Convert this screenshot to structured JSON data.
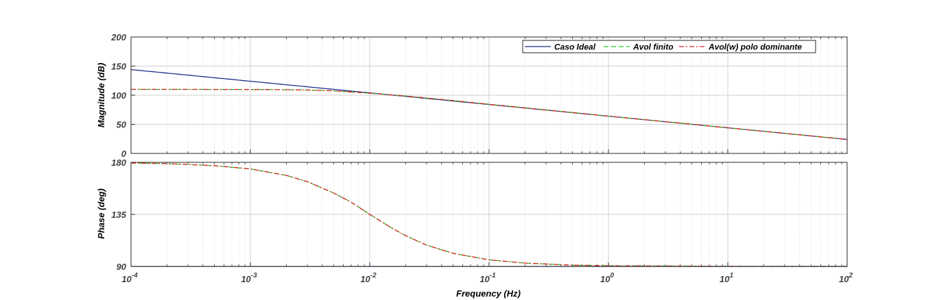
{
  "chart_data": [
    {
      "type": "line",
      "panel": "magnitude",
      "ylabel": "Magnitude (dB)",
      "ylim": [
        0,
        200
      ],
      "yticks": [
        "0",
        "50",
        "100",
        "150",
        "200"
      ],
      "xscale": "log",
      "xlim": [
        0.0001,
        100
      ],
      "grid": true,
      "legend_position": "top-right",
      "legend_entries": [
        "Caso Ideal",
        "Avol finito",
        "Avol(w) polo dominante"
      ],
      "series": [
        {
          "name": "Caso Ideal",
          "color": "#1f2f8a",
          "style": "solid",
          "x": [
            0.0001,
            0.001,
            0.01,
            0.1,
            1,
            10,
            100
          ],
          "y": [
            144,
            124,
            104,
            84,
            64,
            44,
            24
          ]
        },
        {
          "name": "Avol finito",
          "color": "#22cc22",
          "style": "dashed",
          "x": [
            0.0001,
            0.0003,
            0.001,
            0.002,
            0.003,
            0.005,
            0.01,
            0.02,
            0.05,
            0.1,
            1,
            10,
            100
          ],
          "y": [
            110,
            110,
            109.8,
            109.4,
            108.9,
            107.5,
            103.5,
            98.6,
            90.8,
            84.4,
            64.1,
            44.0,
            24.0
          ]
        },
        {
          "name": "Avol(w) polo dominante",
          "color": "#dd2222",
          "style": "dashdot",
          "x": [
            0.0001,
            0.0003,
            0.001,
            0.002,
            0.003,
            0.005,
            0.01,
            0.02,
            0.05,
            0.1,
            1,
            10,
            100
          ],
          "y": [
            110,
            110,
            109.8,
            109.4,
            108.9,
            107.5,
            103.5,
            98.6,
            90.8,
            84.4,
            64.1,
            44.0,
            24.0
          ]
        }
      ]
    },
    {
      "type": "line",
      "panel": "phase",
      "ylabel": "Phase (deg)",
      "xlabel": "Frequency  (Hz)",
      "ylim": [
        90,
        180
      ],
      "yticks": [
        "90",
        "135",
        "180"
      ],
      "xscale": "log",
      "xlim": [
        0.0001,
        100
      ],
      "xticks": [
        "10^-4",
        "10^-3",
        "10^-2",
        "10^-1",
        "10^0",
        "10^1",
        "10^2"
      ],
      "grid": true,
      "series": [
        {
          "name": "Caso Ideal",
          "color": "#1f2f8a",
          "style": "solid",
          "x": [
            0.0001,
            100
          ],
          "y": [
            90,
            90
          ]
        },
        {
          "name": "Avol finito",
          "color": "#22cc22",
          "style": "dashed",
          "x": [
            0.0001,
            0.0002,
            0.0005,
            0.001,
            0.002,
            0.003,
            0.005,
            0.007,
            0.01,
            0.015,
            0.02,
            0.03,
            0.05,
            0.1,
            0.2,
            0.5,
            1,
            10,
            100
          ],
          "y": [
            179.4,
            178.9,
            177.1,
            174.3,
            168.7,
            163.3,
            153.4,
            145.5,
            135.0,
            123.7,
            116.6,
            108.4,
            101.3,
            95.7,
            92.9,
            91.1,
            90.6,
            90.1,
            90.0
          ]
        },
        {
          "name": "Avol(w) polo dominante",
          "color": "#dd2222",
          "style": "dashdot",
          "x": [
            0.0001,
            0.0002,
            0.0005,
            0.001,
            0.002,
            0.003,
            0.005,
            0.007,
            0.01,
            0.015,
            0.02,
            0.03,
            0.05,
            0.1,
            0.2,
            0.5,
            1,
            10,
            100
          ],
          "y": [
            179.4,
            178.9,
            177.1,
            174.3,
            168.7,
            163.3,
            153.4,
            145.5,
            135.0,
            123.7,
            116.6,
            108.4,
            101.3,
            95.7,
            92.9,
            91.1,
            90.6,
            90.1,
            90.0
          ]
        }
      ]
    }
  ],
  "xtick_exponents": [
    "-4",
    "-3",
    "-2",
    "-1",
    "0",
    "1",
    "2"
  ],
  "xtick_base": "10"
}
